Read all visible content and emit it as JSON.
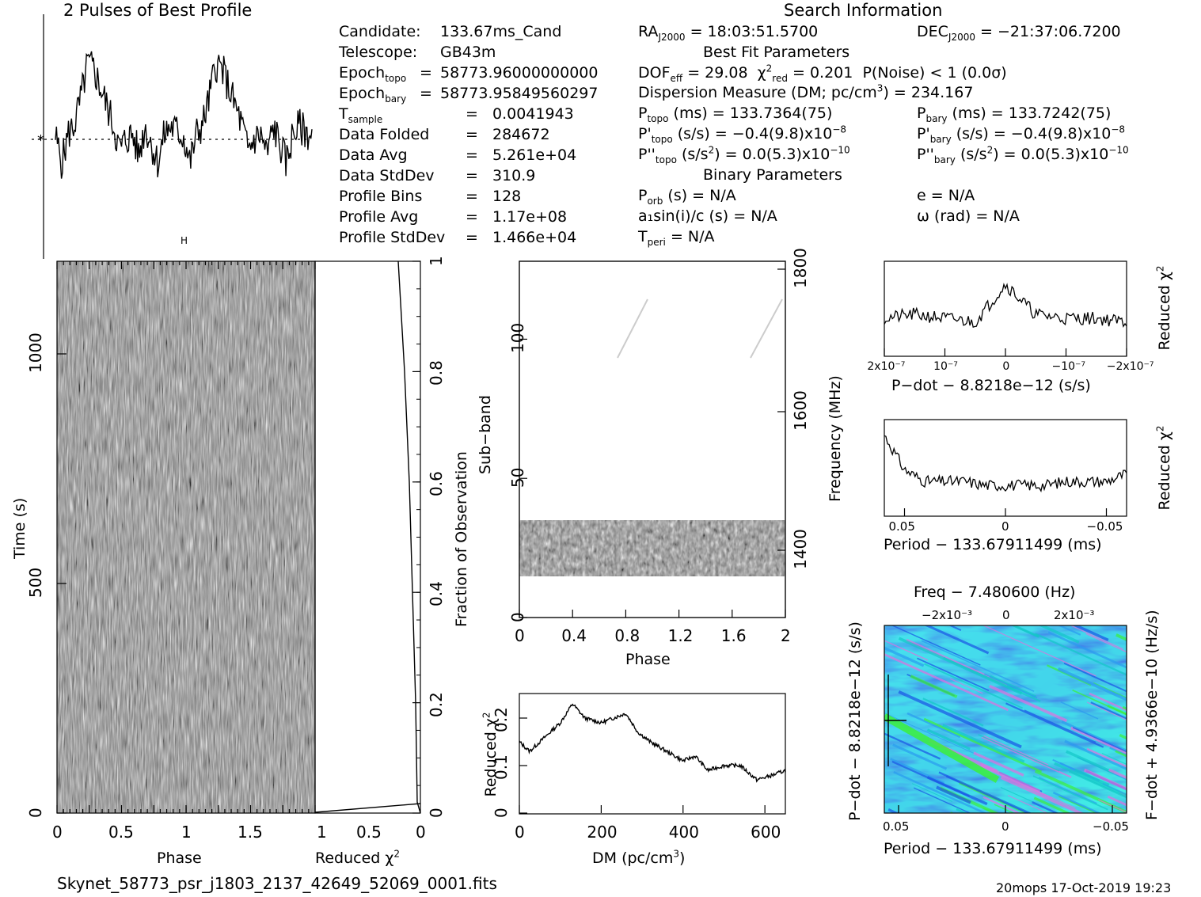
{
  "titles": {
    "profile_title": "2 Pulses of Best Profile",
    "search_info": "Search Information",
    "best_fit": "Best Fit Parameters",
    "binary_params": "Binary Parameters"
  },
  "footer": {
    "filename": "Skynet_58773_psr_j1803_2137_42649_52069_0001.fits",
    "stamp": "20mops 17-Oct-2019 19:23"
  },
  "info_left": [
    {
      "label": "Candidate:",
      "sep": "",
      "value": "133.67ms_Cand"
    },
    {
      "label": "Telescope:",
      "sep": "",
      "value": "GB43m"
    },
    {
      "label": "Epoch",
      "sub": "topo",
      "sep": "=",
      "value": "58773.96000000000"
    },
    {
      "label": "Epoch",
      "sub": "bary",
      "sep": "=",
      "value": "58773.95849560297"
    },
    {
      "label": "T",
      "sub": "sample",
      "sep": "=",
      "value": "0.0041943"
    },
    {
      "label": "Data Folded",
      "sep": "=",
      "value": "284672"
    },
    {
      "label": "Data Avg",
      "sep": "=",
      "value": "5.261e+04"
    },
    {
      "label": "Data StdDev",
      "sep": "=",
      "value": "310.9"
    },
    {
      "label": "Profile Bins",
      "sep": "=",
      "value": "128"
    },
    {
      "label": "Profile Avg",
      "sep": "=",
      "value": "1.17e+08"
    },
    {
      "label": "Profile StdDev",
      "sep": "=",
      "value": "1.466e+04"
    }
  ],
  "info_mid": {
    "ra": "= 18:03:51.5700",
    "dec": "= −21:37:06.7200",
    "dof": "= 29.08",
    "chi2": "= 0.201",
    "pnoise": "P(Noise) < 1   (0.0σ)",
    "dm": "Dispersion Measure (DM; pc/cm",
    "dm_val": ") = 234.167",
    "ptopo": "(ms)  =   133.7364(75)",
    "pbary": "(ms)  =   133.7242(75)",
    "pdtopo": "(s/s) = −0.4(9.8)x10",
    "pdbary": "(s/s) = −0.4(9.8)x10",
    "pddtopo": "(s/s",
    "pddtopo2": ") = 0.0(5.3)x10",
    "pddbary": "(s/s",
    "pddbary2": ") = 0.0(5.3)x10",
    "porb": "(s) = N/A",
    "a1": "a₁sin(i)/c (s) = N/A",
    "tperi": "= N/A",
    "e": "e = N/A",
    "omega": "ω (rad) = N/A"
  },
  "axes": {
    "time_label": "Time (s)",
    "phase_label": "Phase",
    "redchi_label": "Reduced χ",
    "fraction_label": "Fraction of Observation",
    "subband_label": "Sub−band",
    "frequency_label": "Frequency (MHz)",
    "dm_label": "DM (pc/cm",
    "pdot_label": "P−dot − 8.8218e−12 (s/s)",
    "period_label": "Period − 133.67911499 (ms)",
    "freq_label": "Freq − 7.480600 (Hz)",
    "pdot_side_label": "P−dot − 8.8218e−12 (s/s)",
    "fdot_label": "F−dot + 4.9366e−10 (Hz/s)"
  },
  "ticks": {
    "time": [
      "0",
      "500",
      "1000"
    ],
    "phase": [
      "0",
      "0.5",
      "1",
      "1.5"
    ],
    "redchi_bottom": [
      "1",
      "0.5",
      "0"
    ],
    "fraction": [
      "0",
      "0.2",
      "0.4",
      "0.6",
      "0.8",
      "1"
    ],
    "subband": [
      "0",
      "50",
      "100"
    ],
    "freq": [
      "1400",
      "1600",
      "1800"
    ],
    "phase2": [
      "0",
      "0.4",
      "0.8",
      "1.2",
      "1.6",
      "2"
    ],
    "dm": [
      "0",
      "200",
      "400",
      "600"
    ],
    "dm_chi": [
      "0",
      "0.1",
      "0.2"
    ],
    "pdot_x": [
      "2x10⁻⁷",
      "10⁻⁷",
      "0",
      "−10⁻⁷",
      "−2x10⁻⁷"
    ],
    "period_x": [
      "0.05",
      "0",
      "−0.05"
    ],
    "freq_top": [
      "−2x10⁻³",
      "0",
      "2x10⁻³"
    ]
  },
  "colors": {
    "bg": "#ffffff",
    "ink": "#000000",
    "ppdot_low": "#1a55e6",
    "ppdot_mid": "#14c8c8",
    "ppdot_high": "#3cf03c"
  },
  "chart_data": [
    {
      "type": "line",
      "title": "2 Pulses of Best Profile",
      "x": [
        0,
        0.05,
        0.1,
        0.15,
        0.2,
        0.25,
        0.3,
        0.35,
        0.4,
        0.45,
        0.5,
        0.55,
        0.6,
        0.65,
        0.7,
        0.75,
        0.8,
        0.85,
        0.9,
        0.95,
        1.0,
        1.05,
        1.1,
        1.15,
        1.2,
        1.25,
        1.3,
        1.35,
        1.4,
        1.45,
        1.5,
        1.55,
        1.6,
        1.65,
        1.7,
        1.75,
        1.8,
        1.85,
        1.9,
        1.95,
        2.0
      ],
      "values": [
        0.1,
        -0.9,
        0.2,
        0.6,
        1.6,
        2.9,
        2.7,
        2.0,
        1.3,
        0.6,
        -0.4,
        0.0,
        0.2,
        -0.6,
        0.5,
        -0.2,
        -0.9,
        0.2,
        0.5,
        0.3,
        0.1,
        -0.9,
        0.2,
        0.6,
        1.6,
        2.9,
        2.7,
        2.0,
        1.3,
        0.6,
        -0.4,
        0.0,
        0.2,
        -0.6,
        0.5,
        -0.2,
        -0.9,
        0.2,
        0.5,
        0.3,
        0.1
      ]
    },
    {
      "type": "line",
      "xlabel": "DM (pc/cm3)",
      "ylabel": "Reduced χ²",
      "x": [
        0,
        25,
        50,
        75,
        100,
        130,
        160,
        200,
        230,
        260,
        290,
        320,
        360,
        400,
        430,
        460,
        500,
        540,
        580,
        620,
        650
      ],
      "values": [
        0.15,
        0.13,
        0.15,
        0.17,
        0.19,
        0.23,
        0.2,
        0.19,
        0.2,
        0.21,
        0.17,
        0.15,
        0.13,
        0.11,
        0.12,
        0.09,
        0.1,
        0.1,
        0.07,
        0.08,
        0.09
      ],
      "xlim": [
        0,
        650
      ],
      "ylim": [
        0,
        0.25
      ]
    },
    {
      "type": "line",
      "xlabel": "P−dot − 8.8218e−12 (s/s)",
      "ylabel": "Reduced χ²",
      "x": [
        2e-07,
        1.5e-07,
        1e-07,
        5e-08,
        0,
        -5e-08,
        -1e-07,
        -1.5e-07,
        -2e-07
      ],
      "values": [
        0.1,
        0.11,
        0.1,
        0.09,
        0.19,
        0.11,
        0.1,
        0.1,
        0.09
      ]
    },
    {
      "type": "line",
      "xlabel": "Period − 133.67911499 (ms)",
      "ylabel": "Reduced χ²",
      "x": [
        0.06,
        0.05,
        0.04,
        0.03,
        0.02,
        0.01,
        0,
        -0.01,
        -0.02,
        -0.03,
        -0.04,
        -0.05,
        -0.06
      ],
      "values": [
        0.21,
        0.12,
        0.09,
        0.09,
        0.09,
        0.08,
        0.08,
        0.08,
        0.08,
        0.09,
        0.09,
        0.09,
        0.11
      ]
    },
    {
      "type": "line",
      "xlabel": "Reduced χ²",
      "ylabel": "Fraction of Observation",
      "x": [
        0.0,
        0.02,
        0.03,
        0.05,
        0.07,
        0.1,
        0.12,
        0.14
      ],
      "values": [
        0.0,
        0.02,
        0.2,
        0.4,
        0.6,
        0.8,
        0.9,
        1.0
      ]
    },
    {
      "type": "heatmap",
      "xlabel": "Phase",
      "ylabel": "Time (s)",
      "xlim": [
        0,
        2
      ],
      "ylim": [
        0,
        1180
      ]
    },
    {
      "type": "heatmap",
      "xlabel": "Phase",
      "ylabel": "Sub−band",
      "xlim": [
        0,
        2
      ],
      "ylim": [
        0,
        128
      ]
    },
    {
      "type": "heatmap",
      "xlabel": "Period − 133.67911499 (ms)",
      "ylabel": "P−dot − 8.8218e−12 (s/s)"
    }
  ]
}
